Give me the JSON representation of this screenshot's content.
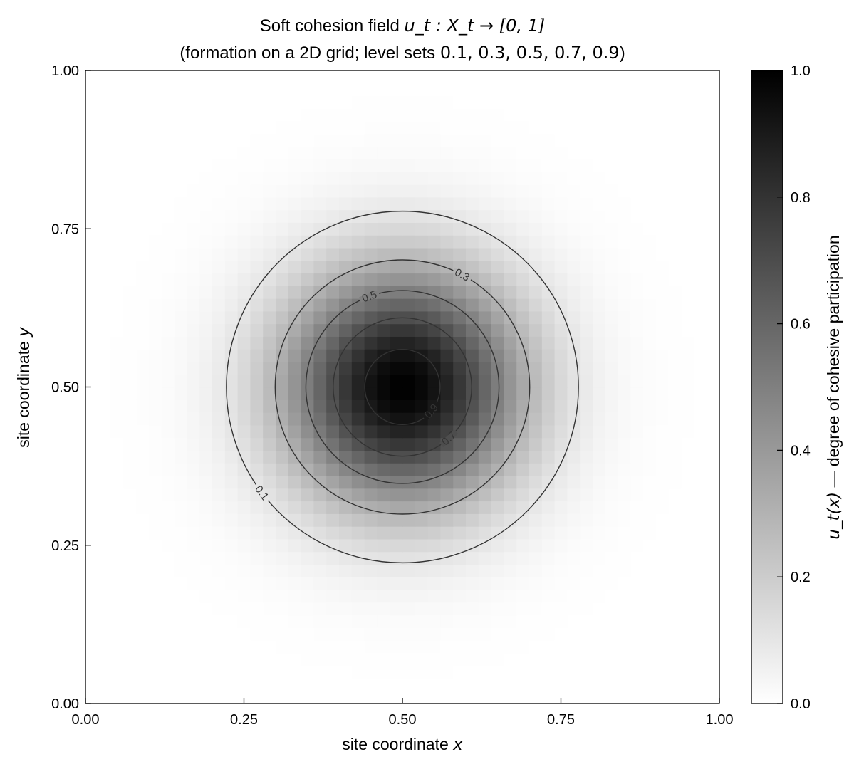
{
  "chart_data": {
    "type": "heatmap",
    "title": {
      "line1_prefix": "Soft cohesion field",
      "line1_math": "u_t : X_t → [0, 1]",
      "line2_prefix": "(formation on a 2D grid; level sets ",
      "line2_levels": "0.1, 0.3, 0.5, 0.7, 0.9",
      "line2_suffix": ")"
    },
    "xlabel": {
      "text": "site coordinate",
      "var": "x"
    },
    "ylabel": {
      "text": "site coordinate",
      "var": "y"
    },
    "xlim": [
      0,
      1
    ],
    "ylim": [
      0,
      1
    ],
    "xticks": [
      "0.00",
      "0.25",
      "0.50",
      "0.75",
      "1.00"
    ],
    "yticks": [
      "0.00",
      "0.25",
      "0.50",
      "0.75",
      "1.00"
    ],
    "colormap": "gray_r",
    "colorbar": {
      "range": [
        0,
        1
      ],
      "ticks": [
        "0.0",
        "0.2",
        "0.4",
        "0.6",
        "0.8",
        "1.0"
      ],
      "label_math": "u_t(x)",
      "label_sep": " — ",
      "label_text": "degree of cohesive participation"
    },
    "field": {
      "form": "gaussian",
      "center": [
        0.5,
        0.5
      ],
      "sigma": 0.1294,
      "grid_cells": 50,
      "peak": 1.0
    },
    "contours": [
      {
        "level": 0.1,
        "label": "0.1",
        "label_angle_deg": 217
      },
      {
        "level": 0.3,
        "label": "0.3",
        "label_angle_deg": 62
      },
      {
        "level": 0.5,
        "label": "0.5",
        "label_angle_deg": 110
      },
      {
        "level": 0.7,
        "label": "0.7",
        "label_angle_deg": 312
      },
      {
        "level": 0.9,
        "label": "0.9",
        "label_angle_deg": 320
      }
    ],
    "contour_color": "#333333"
  }
}
